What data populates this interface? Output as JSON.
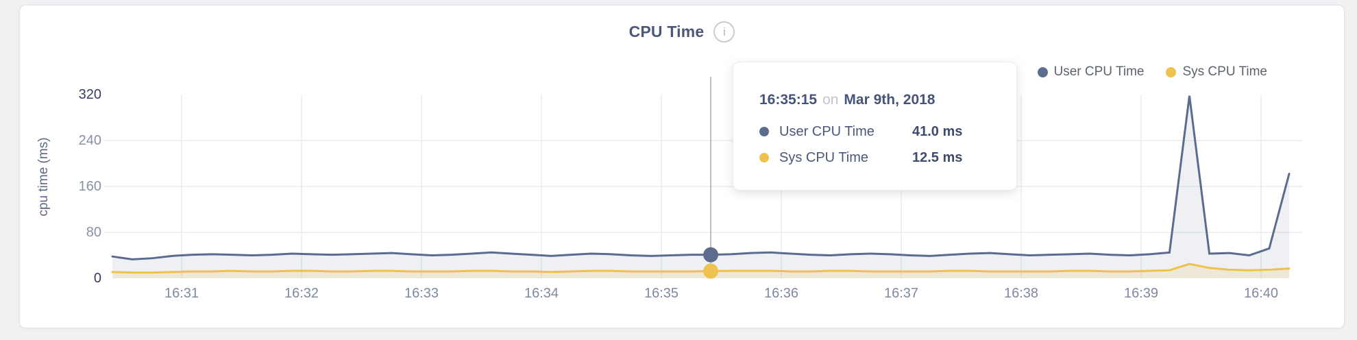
{
  "header": {
    "title": "CPU Time"
  },
  "icons": {
    "info": "i"
  },
  "legend": {
    "items": [
      {
        "label": "User CPU Time",
        "color": "#5d6d90"
      },
      {
        "label": "Sys CPU Time",
        "color": "#eec24f"
      }
    ]
  },
  "tooltip": {
    "time": "16:35:15",
    "connector": "on",
    "date": "Mar 9th, 2018",
    "rows": [
      {
        "label": "User CPU Time",
        "value": "41.0 ms",
        "color": "#5d6d90"
      },
      {
        "label": "Sys CPU Time",
        "value": "12.5 ms",
        "color": "#eec24f"
      }
    ]
  },
  "chart_data": {
    "type": "line",
    "title": "CPU Time",
    "xlabel": "",
    "ylabel": "cpu time (ms)",
    "x_ticks": [
      "16:31",
      "16:32",
      "16:33",
      "16:34",
      "16:35",
      "16:36",
      "16:37",
      "16:38",
      "16:39",
      "16:40"
    ],
    "y_ticks": [
      0,
      80,
      160,
      240,
      320
    ],
    "ylim": [
      0,
      320
    ],
    "grid": true,
    "legend_position": "top-right",
    "x_range": [
      "16:30:25",
      "16:40:15"
    ],
    "sample_interval_seconds": 10,
    "series": [
      {
        "name": "User CPU Time",
        "color": "#5b6b8e",
        "fill": "rgba(93,108,143,0.10)",
        "values": [
          38,
          33,
          35,
          39,
          41,
          42,
          41,
          40,
          41,
          43,
          42,
          41,
          42,
          43,
          44,
          42,
          40,
          41,
          43,
          45,
          43,
          41,
          39,
          41,
          43,
          42,
          40,
          39,
          40,
          41,
          41,
          42,
          44,
          45,
          43,
          41,
          40,
          42,
          43,
          42,
          40,
          39,
          41,
          43,
          44,
          42,
          40,
          41,
          42,
          43,
          41,
          40,
          42,
          45,
          318,
          43,
          44,
          40,
          52,
          182
        ]
      },
      {
        "name": "Sys CPU Time",
        "color": "#efc14c",
        "fill": "rgba(238,193,77,0.16)",
        "values": [
          11,
          10,
          10,
          11,
          12,
          12,
          13,
          12,
          12,
          13,
          13,
          12,
          12,
          13,
          13,
          12,
          12,
          12,
          13,
          13,
          12,
          12,
          11,
          12,
          13,
          13,
          12,
          12,
          12,
          12,
          12.5,
          13,
          13,
          13,
          12,
          12,
          13,
          13,
          12,
          12,
          12,
          12,
          13,
          13,
          12,
          12,
          12,
          12,
          13,
          13,
          12,
          12,
          13,
          14,
          25,
          18,
          15,
          14,
          15,
          17
        ]
      }
    ],
    "highlight": {
      "index": 30,
      "time": "16:35:15",
      "date": "Mar 9th, 2018",
      "values_ms": [
        41.0,
        12.5
      ]
    }
  }
}
